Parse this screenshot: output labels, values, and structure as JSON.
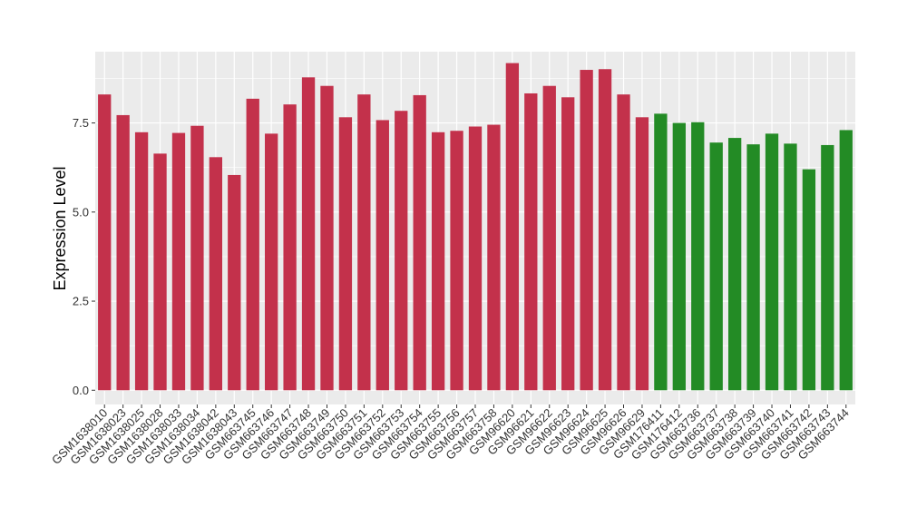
{
  "chart_data": {
    "type": "bar",
    "ylabel": "Expression Level",
    "xlabel": "",
    "ylim": [
      -0.4,
      9.5
    ],
    "yticks": [
      0.0,
      2.5,
      5.0,
      7.5
    ],
    "ytick_labels": [
      "0.0",
      "2.5",
      "5.0",
      "7.5"
    ],
    "grid": true,
    "categories": [
      "GSM1638010",
      "GSM1638023",
      "GSM1638025",
      "GSM1638028",
      "GSM1638033",
      "GSM1638034",
      "GSM1638042",
      "GSM1638043",
      "GSM663745",
      "GSM663746",
      "GSM663747",
      "GSM663748",
      "GSM663749",
      "GSM663750",
      "GSM663751",
      "GSM663752",
      "GSM663753",
      "GSM663754",
      "GSM663755",
      "GSM663756",
      "GSM663757",
      "GSM663758",
      "GSM96620",
      "GSM96621",
      "GSM96622",
      "GSM96623",
      "GSM96624",
      "GSM96625",
      "GSM96626",
      "GSM96629",
      "GSM176411",
      "GSM176412",
      "GSM663736",
      "GSM663737",
      "GSM663738",
      "GSM663739",
      "GSM663740",
      "GSM663741",
      "GSM663742",
      "GSM663743",
      "GSM663744"
    ],
    "values": [
      8.3,
      7.72,
      7.24,
      6.64,
      7.22,
      7.42,
      6.54,
      6.04,
      8.18,
      7.2,
      8.02,
      8.78,
      8.54,
      7.66,
      8.3,
      7.58,
      7.84,
      8.28,
      7.24,
      7.28,
      7.4,
      7.45,
      9.18,
      8.33,
      8.54,
      8.22,
      8.99,
      9.01,
      8.3,
      7.66,
      7.76,
      7.5,
      7.52,
      6.95,
      7.08,
      6.9,
      7.2,
      6.92,
      6.2,
      6.88,
      7.3
    ],
    "groups": [
      "red",
      "red",
      "red",
      "red",
      "red",
      "red",
      "red",
      "red",
      "red",
      "red",
      "red",
      "red",
      "red",
      "red",
      "red",
      "red",
      "red",
      "red",
      "red",
      "red",
      "red",
      "red",
      "red",
      "red",
      "red",
      "red",
      "red",
      "red",
      "red",
      "red",
      "green",
      "green",
      "green",
      "green",
      "green",
      "green",
      "green",
      "green",
      "green",
      "green",
      "green"
    ],
    "colors": {
      "red": "#c3314b",
      "green": "#238b25",
      "panel": "#ebebeb",
      "grid": "#ffffff"
    }
  }
}
